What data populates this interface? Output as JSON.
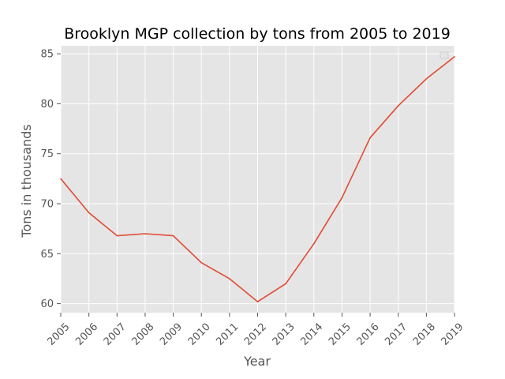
{
  "chart_data": {
    "type": "line",
    "title": "Brooklyn MGP collection by tons from 2005 to 2019",
    "xlabel": "Year",
    "ylabel": "Tons in thousands",
    "x": [
      "2005",
      "2006",
      "2007",
      "2008",
      "2009",
      "2010",
      "2011",
      "2012",
      "2013",
      "2014",
      "2015",
      "2016",
      "2017",
      "2018",
      "2019"
    ],
    "series": [
      {
        "values": [
          72.5,
          69.1,
          66.8,
          67.0,
          66.8,
          64.1,
          62.5,
          60.2,
          62.0,
          66.0,
          70.6,
          76.6,
          79.8,
          82.5,
          84.7
        ]
      }
    ],
    "xlim": [
      "2005",
      "2019"
    ],
    "ylim": [
      59.1,
      85.8
    ],
    "yticks": [
      60,
      65,
      70,
      75,
      80,
      85
    ],
    "grid": true,
    "legend": "top-right (empty)",
    "style": "ggplot",
    "colors": {
      "line": "#E24A33",
      "plot_bg": "#E5E5E5",
      "grid": "#FFFFFF"
    }
  }
}
